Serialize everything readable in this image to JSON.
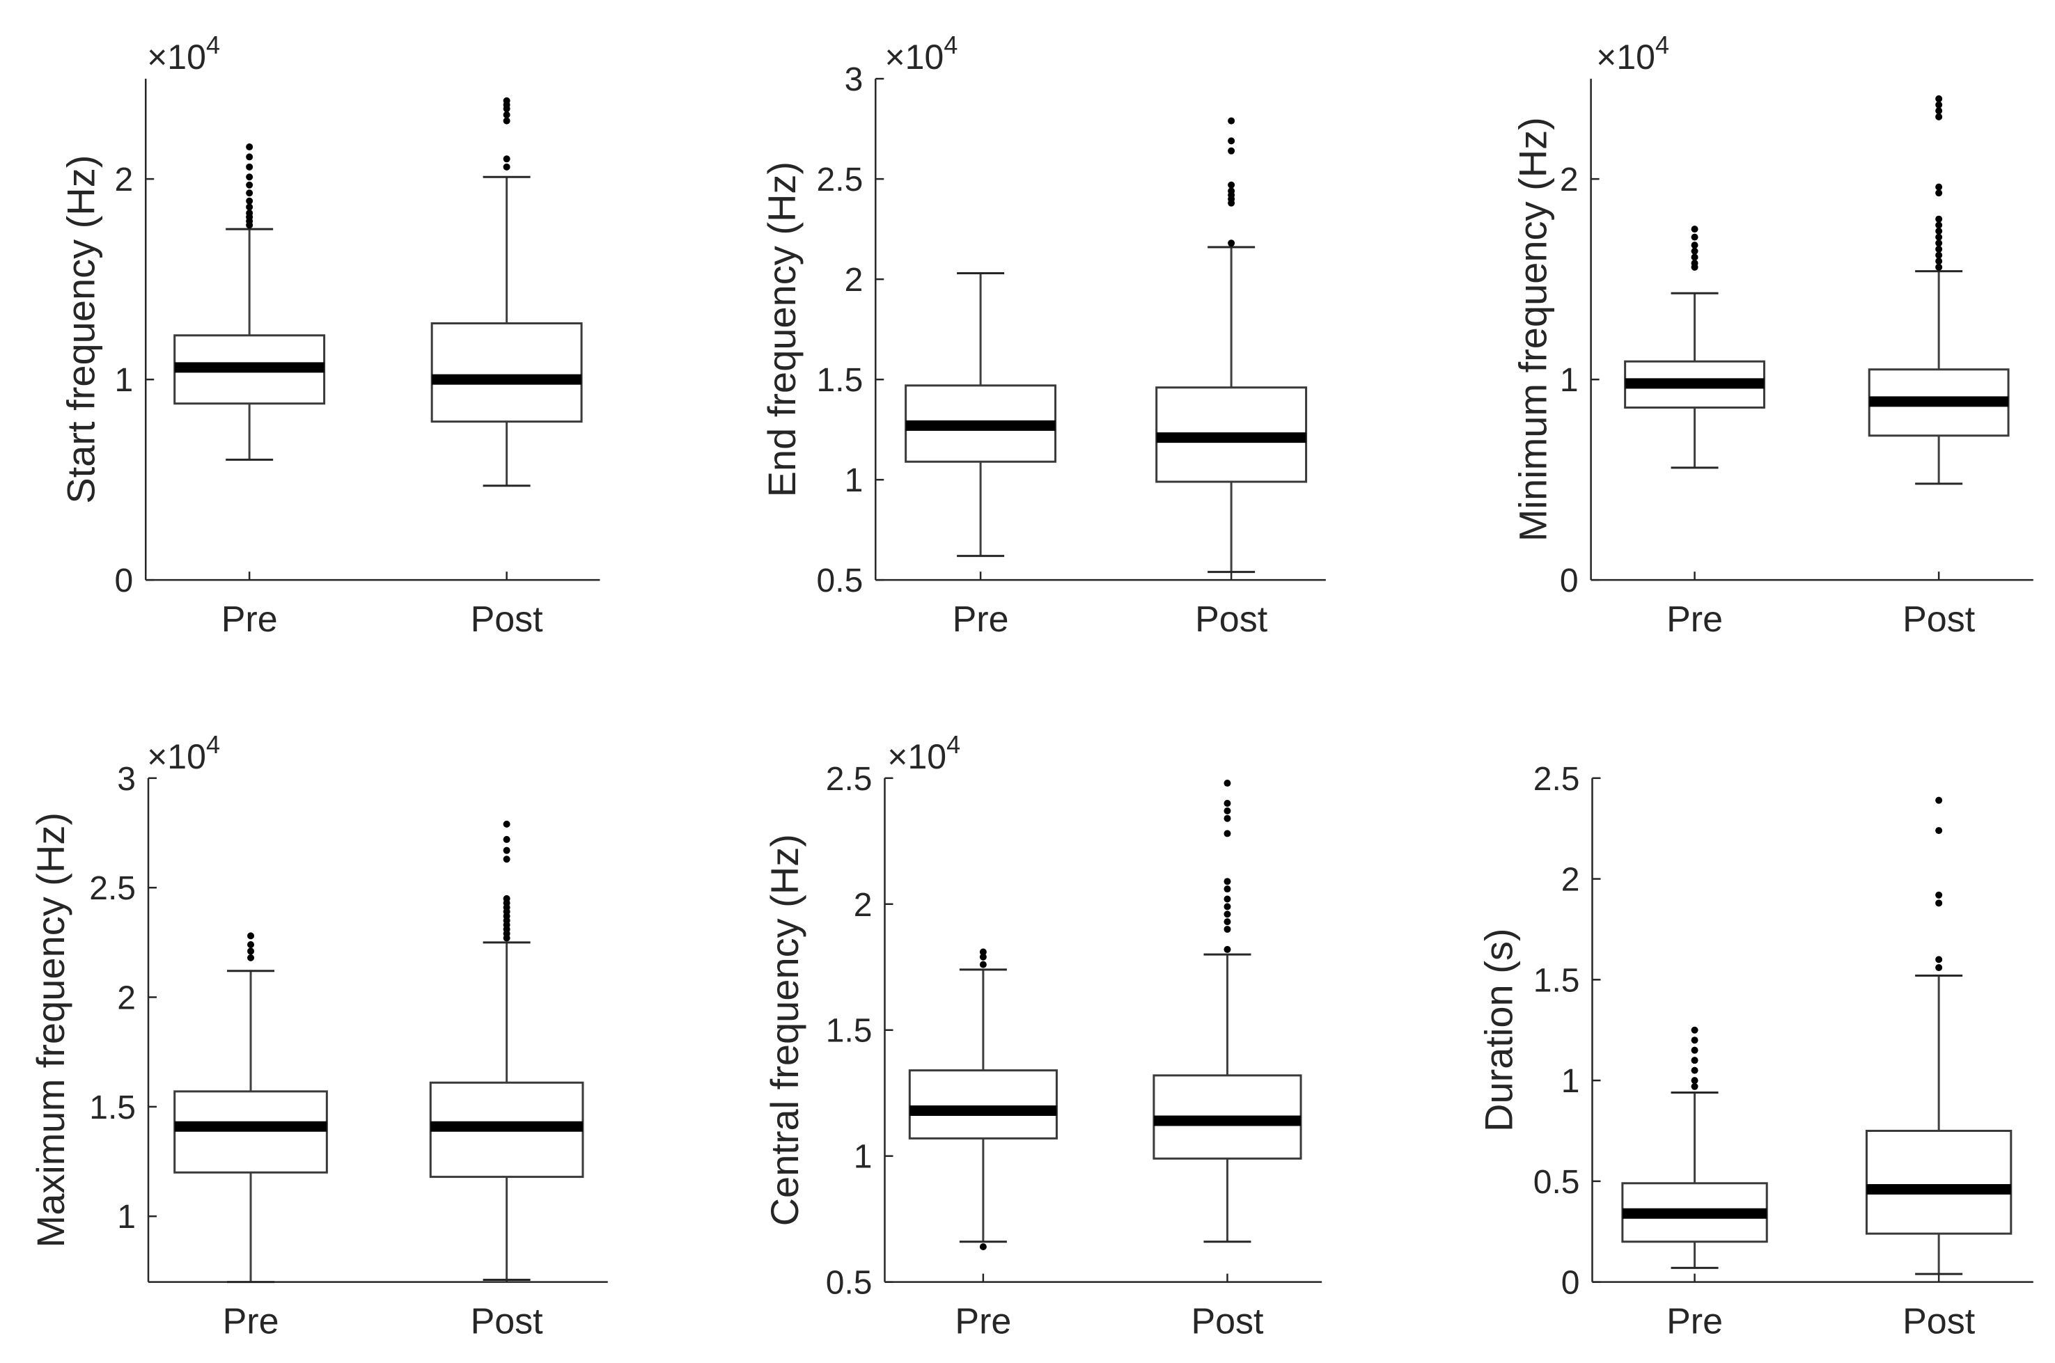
{
  "figure": {
    "categories": [
      "Pre",
      "Post"
    ]
  },
  "chart_data": [
    {
      "type": "box",
      "ylabel": "Start frequency (Hz)",
      "scale_label": "×10",
      "scale_exp": "4",
      "ylim": [
        0,
        2.5
      ],
      "yticks": [
        0,
        1,
        2
      ],
      "categories": [
        "Pre",
        "Post"
      ],
      "series": [
        {
          "name": "Pre",
          "whisker_low": 0.6,
          "q1": 0.88,
          "median": 1.06,
          "q3": 1.22,
          "whisker_high": 1.75,
          "outliers": [
            1.77,
            1.79,
            1.81,
            1.83,
            1.86,
            1.89,
            1.93,
            1.97,
            2.01,
            2.06,
            2.11,
            2.16
          ]
        },
        {
          "name": "Post",
          "whisker_low": 0.47,
          "q1": 0.79,
          "median": 1.0,
          "q3": 1.28,
          "whisker_high": 2.01,
          "outliers": [
            2.06,
            2.1,
            2.29,
            2.32,
            2.35,
            2.37,
            2.39
          ]
        }
      ]
    },
    {
      "type": "box",
      "ylabel": "End frequency (Hz)",
      "scale_label": "×10",
      "scale_exp": "4",
      "ylim": [
        0.5,
        3
      ],
      "yticks": [
        0.5,
        1,
        1.5,
        2,
        2.5,
        3
      ],
      "categories": [
        "Pre",
        "Post"
      ],
      "series": [
        {
          "name": "Pre",
          "whisker_low": 0.62,
          "q1": 1.09,
          "median": 1.27,
          "q3": 1.47,
          "whisker_high": 2.03,
          "outliers": []
        },
        {
          "name": "Post",
          "whisker_low": 0.54,
          "q1": 0.99,
          "median": 1.21,
          "q3": 1.46,
          "whisker_high": 2.16,
          "outliers": [
            2.18,
            2.38,
            2.4,
            2.42,
            2.44,
            2.47,
            2.64,
            2.69,
            2.79
          ]
        }
      ]
    },
    {
      "type": "box",
      "ylabel": "Minimum frequency (Hz)",
      "scale_label": "×10",
      "scale_exp": "4",
      "ylim": [
        0,
        2.5
      ],
      "yticks": [
        0,
        1,
        2
      ],
      "categories": [
        "Pre",
        "Post"
      ],
      "series": [
        {
          "name": "Pre",
          "whisker_low": 0.56,
          "q1": 0.86,
          "median": 0.98,
          "q3": 1.09,
          "whisker_high": 1.43,
          "outliers": [
            1.56,
            1.58,
            1.61,
            1.64,
            1.67,
            1.71,
            1.75
          ]
        },
        {
          "name": "Post",
          "whisker_low": 0.48,
          "q1": 0.72,
          "median": 0.89,
          "q3": 1.05,
          "whisker_high": 1.54,
          "outliers": [
            1.56,
            1.59,
            1.62,
            1.65,
            1.68,
            1.71,
            1.74,
            1.77,
            1.8,
            1.93,
            1.96,
            2.31,
            2.34,
            2.37,
            2.4
          ]
        }
      ]
    },
    {
      "type": "box",
      "ylabel": "Maximum frequency (Hz)",
      "scale_label": "×10",
      "scale_exp": "4",
      "ylim": [
        0.7,
        3
      ],
      "yticks": [
        1,
        1.5,
        2,
        2.5,
        3
      ],
      "categories": [
        "Pre",
        "Post"
      ],
      "series": [
        {
          "name": "Pre",
          "whisker_low": 0.7,
          "q1": 1.2,
          "median": 1.41,
          "q3": 1.57,
          "whisker_high": 2.12,
          "outliers": [
            2.18,
            2.21,
            2.24,
            2.28
          ]
        },
        {
          "name": "Post",
          "whisker_low": 0.71,
          "q1": 1.18,
          "median": 1.41,
          "q3": 1.61,
          "whisker_high": 2.25,
          "outliers": [
            2.27,
            2.29,
            2.31,
            2.33,
            2.35,
            2.37,
            2.39,
            2.41,
            2.43,
            2.45,
            2.63,
            2.67,
            2.72,
            2.79
          ]
        }
      ]
    },
    {
      "type": "box",
      "ylabel": "Central frequency (Hz)",
      "scale_label": "×10",
      "scale_exp": "4",
      "ylim": [
        0.5,
        2.5
      ],
      "yticks": [
        0.5,
        1,
        1.5,
        2,
        2.5
      ],
      "categories": [
        "Pre",
        "Post"
      ],
      "series": [
        {
          "name": "Pre",
          "whisker_low": 0.66,
          "q1": 1.07,
          "median": 1.18,
          "q3": 1.34,
          "whisker_high": 1.74,
          "outliers": [
            0.64,
            1.76,
            1.79,
            1.81
          ]
        },
        {
          "name": "Post",
          "whisker_low": 0.66,
          "q1": 0.99,
          "median": 1.14,
          "q3": 1.32,
          "whisker_high": 1.8,
          "outliers": [
            1.82,
            1.9,
            1.93,
            1.96,
            1.99,
            2.02,
            2.06,
            2.09,
            2.28,
            2.34,
            2.37,
            2.4,
            2.48
          ]
        }
      ]
    },
    {
      "type": "box",
      "ylabel": "Duration (s)",
      "scale_label": "",
      "scale_exp": "",
      "ylim": [
        0,
        2.5
      ],
      "yticks": [
        0,
        0.5,
        1,
        1.5,
        2,
        2.5
      ],
      "categories": [
        "Pre",
        "Post"
      ],
      "series": [
        {
          "name": "Pre",
          "whisker_low": 0.07,
          "q1": 0.2,
          "median": 0.34,
          "q3": 0.49,
          "whisker_high": 0.94,
          "outliers": [
            0.97,
            1.0,
            1.05,
            1.1,
            1.15,
            1.2,
            1.25
          ]
        },
        {
          "name": "Post",
          "whisker_low": 0.04,
          "q1": 0.24,
          "median": 0.46,
          "q3": 0.75,
          "whisker_high": 1.52,
          "outliers": [
            1.56,
            1.6,
            1.88,
            1.92,
            2.24,
            2.39
          ]
        }
      ]
    }
  ]
}
